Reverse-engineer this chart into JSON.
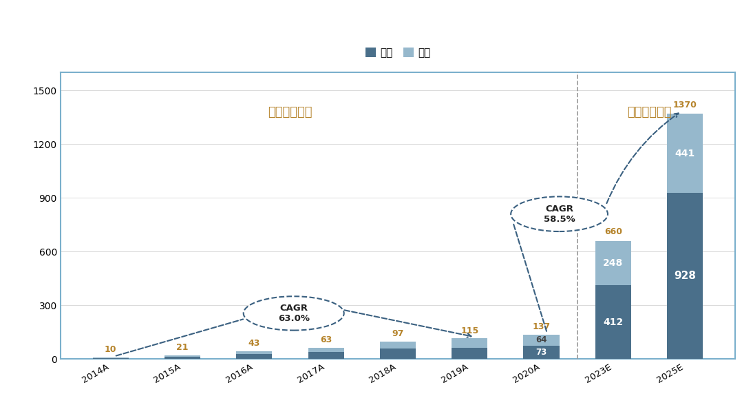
{
  "categories": [
    "2014A",
    "2015A",
    "2016A",
    "2017A",
    "2018A",
    "2019A",
    "2020A",
    "2023E",
    "2025E"
  ],
  "china_values": [
    4,
    9,
    17,
    24,
    40,
    52,
    64,
    248,
    441
  ],
  "overseas_values": [
    6,
    12,
    26,
    39,
    57,
    63,
    73,
    412,
    928
  ],
  "total_labels": [
    10,
    21,
    43,
    63,
    97,
    115,
    137,
    660,
    1370
  ],
  "china_color": "#96b8cc",
  "overseas_color": "#4a6f8a",
  "label_color": "#b5832a",
  "cagr_color": "#3a6080",
  "divider_color": "#999999",
  "frame_color": "#7ab0cc",
  "bg_color": "#ffffff",
  "label1_text": "中国市场主导",
  "label2_text": "海外市场主导",
  "cagr1_text": "CAGR\n63.0%",
  "cagr2_text": "CAGR\n58.5%",
  "legend_labels": [
    "海外",
    "中国"
  ],
  "ylim": [
    0,
    1600
  ],
  "yticks": [
    0,
    300,
    600,
    900,
    1200,
    1500
  ],
  "bar_width": 0.5
}
